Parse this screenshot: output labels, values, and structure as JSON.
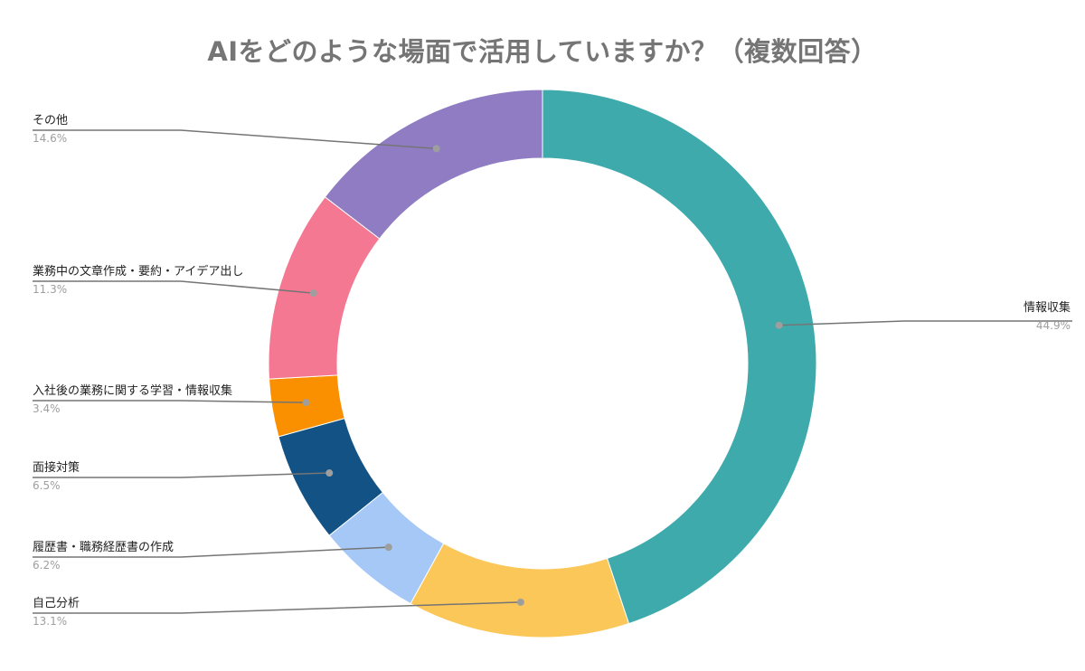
{
  "chart_data": {
    "type": "pie",
    "donut": true,
    "title": "AIをどのような場面で活用していますか？（複数回答）",
    "legend": "none",
    "slices": [
      {
        "label": "情報収集",
        "value": 44.9,
        "display": "44.9%",
        "color": "#3eaaac",
        "side": "right"
      },
      {
        "label": "自己分析",
        "value": 13.1,
        "display": "13.1%",
        "color": "#fbc759",
        "side": "left"
      },
      {
        "label": "履歴書・職務経歴書の作成",
        "value": 6.2,
        "display": "6.2%",
        "color": "#a5c8f7",
        "side": "left"
      },
      {
        "label": "面接対策",
        "value": 6.5,
        "display": "6.5%",
        "color": "#135284",
        "side": "left"
      },
      {
        "label": "入社後の業務に関する学習・情報収集",
        "value": 3.4,
        "display": "3.4%",
        "color": "#fa9000",
        "side": "left"
      },
      {
        "label": "業務中の文章作成・要約・アイデア出し",
        "value": 11.3,
        "display": "11.3%",
        "color": "#f57892",
        "side": "left"
      },
      {
        "label": "その他",
        "value": 14.6,
        "display": "14.6%",
        "color": "#8f7cc3",
        "side": "left"
      }
    ]
  }
}
